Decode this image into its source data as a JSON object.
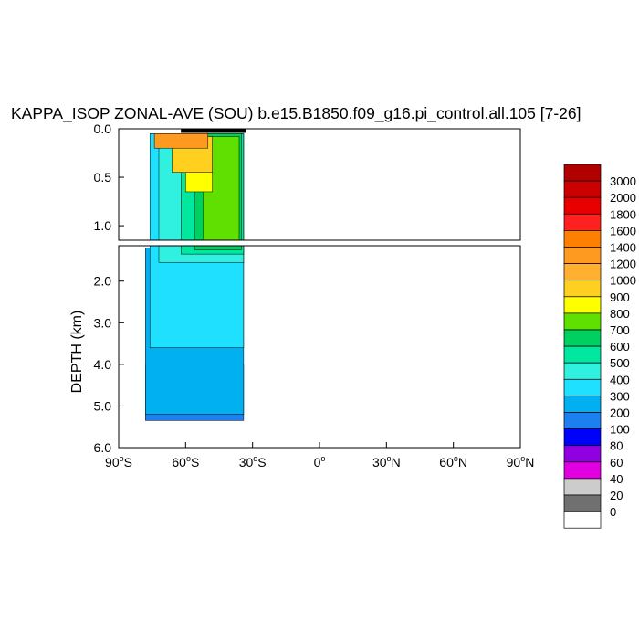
{
  "chart_data": {
    "type": "heatmap",
    "title": "KAPPA_ISOP ZONAL-AVE (SOU) b.e15.B1850.f09_g16.pi_control.all.105 [7-26]",
    "ylabel": "DEPTH (km)",
    "xlabel": "",
    "xlim": [
      -90,
      90
    ],
    "ylim": [
      6.0,
      0.0
    ],
    "upper_panel": {
      "ylim": [
        1.15,
        0.0
      ],
      "yticks": [
        "0.0",
        "0.5",
        "1.0"
      ]
    },
    "lower_panel": {
      "ylim": [
        6.0,
        1.15
      ],
      "yticks": [
        "2.0",
        "3.0",
        "4.0",
        "5.0",
        "6.0"
      ]
    },
    "xticks": [
      {
        "value": -90,
        "deg": "90",
        "hemi": "S"
      },
      {
        "value": -60,
        "deg": "60",
        "hemi": "S"
      },
      {
        "value": -30,
        "deg": "30",
        "hemi": "S"
      },
      {
        "value": 0,
        "deg": "0",
        "hemi": ""
      },
      {
        "value": 30,
        "deg": "30",
        "hemi": "N"
      },
      {
        "value": 60,
        "deg": "60",
        "hemi": "N"
      },
      {
        "value": 90,
        "deg": "90",
        "hemi": "N"
      }
    ],
    "colorbar": {
      "levels": [
        "3000",
        "2000",
        "1800",
        "1600",
        "1400",
        "1200",
        "1000",
        "900",
        "800",
        "700",
        "600",
        "500",
        "400",
        "300",
        "200",
        "100",
        "80",
        "60",
        "40",
        "20",
        "0"
      ],
      "colors": [
        "#b00000",
        "#cc0000",
        "#e80000",
        "#ff2020",
        "#ff8000",
        "#ff9a20",
        "#ffb030",
        "#ffd020",
        "#ffff00",
        "#60e000",
        "#00d060",
        "#00e8a0",
        "#30f0e0",
        "#20e0ff",
        "#00b0f0",
        "#1e7ff0",
        "#0000ff",
        "#9000e0",
        "#e000e0",
        "#cccccc",
        "#707070",
        "#ffffff"
      ]
    },
    "lat_range": [
      -78,
      -34
    ],
    "regions": [
      {
        "name": "deep-blue-edge",
        "color": "#1e7ff0",
        "lat": [
          -78,
          -34
        ],
        "depth": [
          4.0,
          5.35
        ]
      },
      {
        "name": "cyan-300-deep",
        "color": "#00b0f0",
        "lat": [
          -78,
          -34
        ],
        "depth": [
          1.2,
          5.2
        ]
      },
      {
        "name": "cyan-400",
        "color": "#20e0ff",
        "lat": [
          -76,
          -34
        ],
        "depth": [
          0.05,
          3.6
        ]
      },
      {
        "name": "aqua-500",
        "color": "#30f0e0",
        "lat": [
          -72,
          -34
        ],
        "depth": [
          0.05,
          1.55
        ]
      },
      {
        "name": "green-600",
        "color": "#00e8a0",
        "lat": [
          -62,
          -34
        ],
        "depth": [
          0.05,
          1.35
        ]
      },
      {
        "name": "green-700",
        "color": "#00d060",
        "lat": [
          -56,
          -35
        ],
        "depth": [
          0.05,
          1.25
        ]
      },
      {
        "name": "green-800",
        "color": "#60e000",
        "lat": [
          -52,
          -36
        ],
        "depth": [
          0.08,
          1.15
        ]
      },
      {
        "name": "yellow-900",
        "color": "#ffff00",
        "lat": [
          -60,
          -48
        ],
        "depth": [
          0.1,
          0.65
        ]
      },
      {
        "name": "gold-1000",
        "color": "#ffd020",
        "lat": [
          -66,
          -48
        ],
        "depth": [
          0.08,
          0.45
        ]
      },
      {
        "name": "orange-1200",
        "color": "#ff9a20",
        "lat": [
          -74,
          -50
        ],
        "depth": [
          0.05,
          0.2
        ]
      },
      {
        "name": "surface-black",
        "color": "#000000",
        "lat": [
          -62,
          -33
        ],
        "depth": [
          0.0,
          0.04
        ]
      }
    ]
  }
}
